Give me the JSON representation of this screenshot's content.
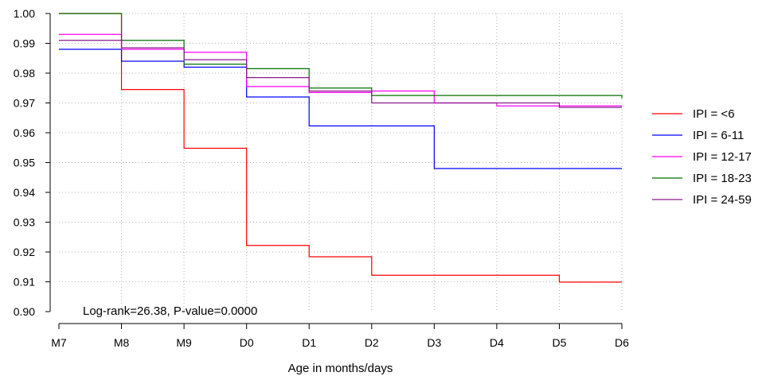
{
  "chart_data": {
    "type": "line",
    "step": true,
    "title": "",
    "xlabel": "Age in months/days",
    "ylabel": "",
    "categories": [
      "M7",
      "M8",
      "M9",
      "D0",
      "D1",
      "D2",
      "D3",
      "D4",
      "D5",
      "D6"
    ],
    "ylim": [
      0.9,
      1.0
    ],
    "yticks": [
      0.9,
      0.91,
      0.92,
      0.93,
      0.94,
      0.95,
      0.96,
      0.97,
      0.98,
      0.99,
      1.0
    ],
    "ytick_labels": [
      "0.90",
      "0.91",
      "0.92",
      "0.93",
      "0.94",
      "0.95",
      "0.96",
      "0.97",
      "0.98",
      "0.99",
      "1.00"
    ],
    "grid": true,
    "legend_position": "right",
    "annotation": "Log-rank=26.38, P-value=0.0000",
    "series": [
      {
        "name": "IPI = <6",
        "color": "#ff0000",
        "values": [
          1.0,
          0.9745,
          0.9548,
          0.9222,
          0.9184,
          0.9122,
          0.9122,
          0.9122,
          0.9099,
          0.9099
        ]
      },
      {
        "name": "IPI = 6-11",
        "color": "#0000ff",
        "values": [
          0.988,
          0.984,
          0.982,
          0.972,
          0.9623,
          0.9623,
          0.948,
          0.948,
          0.948,
          0.948
        ]
      },
      {
        "name": "IPI = 12-17",
        "color": "#ff00ff",
        "values": [
          0.993,
          0.988,
          0.987,
          0.9755,
          0.9735,
          0.974,
          0.97,
          0.969,
          0.969,
          0.969
        ]
      },
      {
        "name": "IPI = 18-23",
        "color": "#007000",
        "values": [
          1.0,
          0.991,
          0.983,
          0.9815,
          0.975,
          0.9725,
          0.9725,
          0.9725,
          0.9725,
          0.9715
        ]
      },
      {
        "name": "IPI = 24-59",
        "color": "#8b1a8b",
        "values": [
          0.991,
          0.9885,
          0.9845,
          0.9785,
          0.974,
          0.97,
          0.97,
          0.97,
          0.9685,
          0.9685
        ]
      }
    ]
  }
}
